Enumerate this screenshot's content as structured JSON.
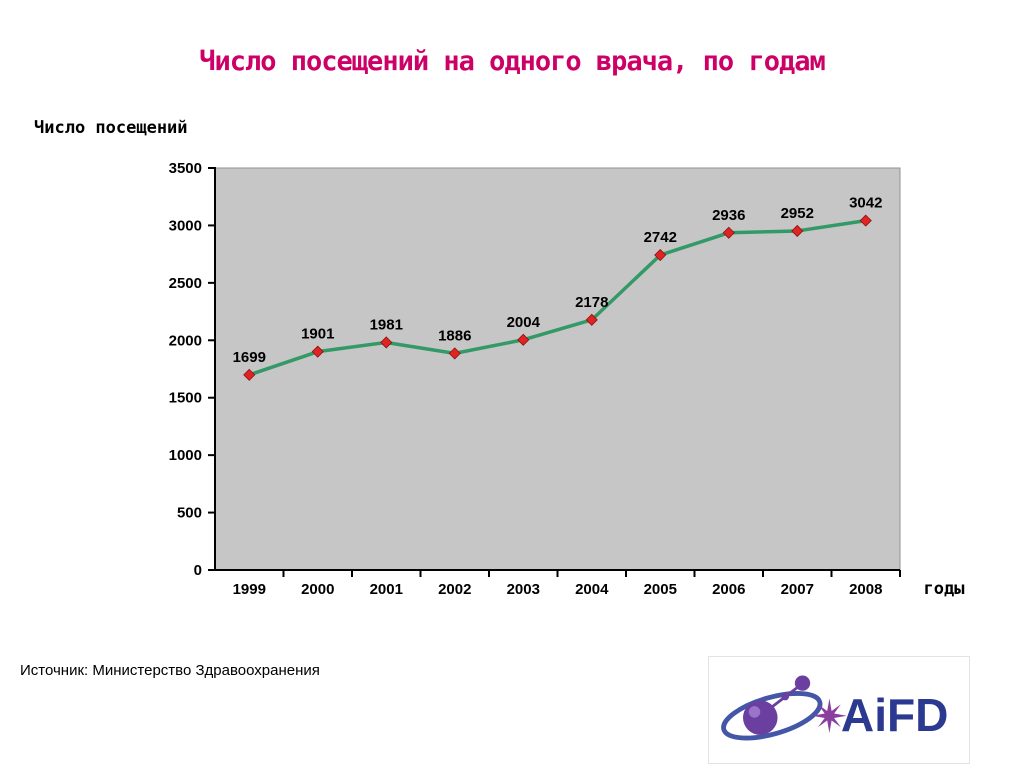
{
  "slide": {
    "title": "Число посещений на одного врача, по годам",
    "source": "Источник: Министерство Здравоохранения",
    "logo": {
      "text": "AiFD"
    }
  },
  "chart_data": {
    "type": "line",
    "title": "Число посещений на одного врача, по годам",
    "ylabel": "Число посещений",
    "xlabel": "годы",
    "categories": [
      "1999",
      "2000",
      "2001",
      "2002",
      "2003",
      "2004",
      "2005",
      "2006",
      "2007",
      "2008"
    ],
    "values": [
      1699,
      1901,
      1981,
      1886,
      2004,
      2178,
      2742,
      2936,
      2952,
      3042
    ],
    "series_name": "Число посещений",
    "ylim": [
      0,
      3500
    ],
    "ytick_step": 500,
    "grid": false,
    "legend": "none",
    "data_labels": true,
    "marker_shape": "diamond",
    "line_color": "#339966",
    "marker_color": "#e02424",
    "plot_bg": "#c6c6c6",
    "title_color": "#cc0066"
  }
}
